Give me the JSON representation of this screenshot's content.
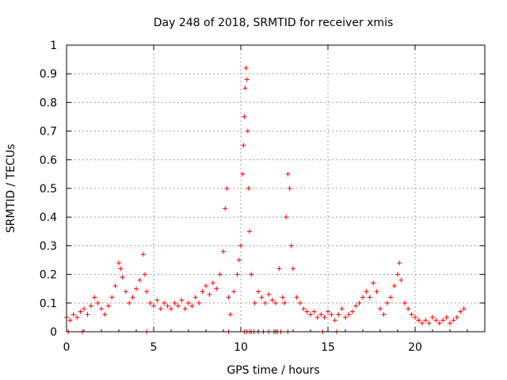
{
  "chart_data": {
    "type": "scatter",
    "title": "Day 248 of 2018, SRMTID for receiver xmis",
    "xlabel": "GPS time / hours",
    "ylabel": "SRMTID / TECUs",
    "xlim": [
      0,
      24
    ],
    "ylim": [
      0,
      1
    ],
    "xticks": [
      0,
      5,
      10,
      15,
      20
    ],
    "xtick_labels": [
      "0",
      "5",
      "10",
      "15",
      "20"
    ],
    "yticks": [
      0,
      0.1,
      0.2,
      0.3,
      0.4,
      0.5,
      0.6,
      0.7,
      0.8,
      0.9,
      1
    ],
    "ytick_labels": [
      "0",
      "0.1",
      "0.2",
      "0.3",
      "0.4",
      "0.5",
      "0.6",
      "0.7",
      "0.8",
      "0.9",
      "1"
    ],
    "grid": true,
    "marker": "+",
    "color": "#ff0000",
    "series": [
      {
        "name": "SRMTID",
        "points": [
          [
            0.0,
            0.05
          ],
          [
            0.2,
            0.04
          ],
          [
            0.4,
            0.06
          ],
          [
            0.6,
            0.05
          ],
          [
            0.8,
            0.07
          ],
          [
            1.0,
            0.08
          ],
          [
            1.2,
            0.06
          ],
          [
            1.4,
            0.09
          ],
          [
            1.6,
            0.12
          ],
          [
            1.8,
            0.1
          ],
          [
            2.0,
            0.08
          ],
          [
            2.2,
            0.06
          ],
          [
            2.4,
            0.09
          ],
          [
            2.6,
            0.12
          ],
          [
            2.8,
            0.16
          ],
          [
            3.0,
            0.24
          ],
          [
            3.1,
            0.22
          ],
          [
            3.2,
            0.19
          ],
          [
            3.4,
            0.14
          ],
          [
            3.6,
            0.1
          ],
          [
            3.8,
            0.12
          ],
          [
            4.0,
            0.15
          ],
          [
            4.2,
            0.18
          ],
          [
            4.4,
            0.27
          ],
          [
            4.5,
            0.2
          ],
          [
            4.6,
            0.14
          ],
          [
            4.8,
            0.1
          ],
          [
            5.0,
            0.09
          ],
          [
            5.2,
            0.11
          ],
          [
            5.4,
            0.08
          ],
          [
            5.6,
            0.1
          ],
          [
            5.8,
            0.09
          ],
          [
            6.0,
            0.08
          ],
          [
            6.2,
            0.1
          ],
          [
            6.4,
            0.09
          ],
          [
            6.6,
            0.11
          ],
          [
            6.8,
            0.08
          ],
          [
            7.0,
            0.1
          ],
          [
            7.2,
            0.09
          ],
          [
            7.4,
            0.12
          ],
          [
            7.6,
            0.1
          ],
          [
            7.8,
            0.14
          ],
          [
            8.0,
            0.16
          ],
          [
            8.2,
            0.13
          ],
          [
            8.4,
            0.17
          ],
          [
            8.6,
            0.15
          ],
          [
            8.8,
            0.2
          ],
          [
            9.0,
            0.28
          ],
          [
            9.1,
            0.43
          ],
          [
            9.2,
            0.5
          ],
          [
            9.3,
            0.12
          ],
          [
            9.4,
            0.06
          ],
          [
            9.6,
            0.14
          ],
          [
            9.8,
            0.2
          ],
          [
            9.9,
            0.25
          ],
          [
            10.0,
            0.3
          ],
          [
            10.1,
            0.55
          ],
          [
            10.15,
            0.65
          ],
          [
            10.2,
            0.75
          ],
          [
            10.25,
            0.85
          ],
          [
            10.3,
            0.92
          ],
          [
            10.35,
            0.88
          ],
          [
            10.4,
            0.7
          ],
          [
            10.45,
            0.5
          ],
          [
            10.5,
            0.35
          ],
          [
            10.6,
            0.2
          ],
          [
            10.8,
            0.1
          ],
          [
            11.0,
            0.14
          ],
          [
            11.2,
            0.12
          ],
          [
            11.4,
            0.1
          ],
          [
            11.6,
            0.13
          ],
          [
            11.8,
            0.11
          ],
          [
            12.0,
            0.1
          ],
          [
            12.2,
            0.22
          ],
          [
            12.4,
            0.12
          ],
          [
            12.5,
            0.1
          ],
          [
            12.6,
            0.4
          ],
          [
            12.7,
            0.55
          ],
          [
            12.8,
            0.5
          ],
          [
            12.9,
            0.3
          ],
          [
            13.0,
            0.22
          ],
          [
            13.2,
            0.12
          ],
          [
            13.4,
            0.1
          ],
          [
            13.6,
            0.08
          ],
          [
            13.8,
            0.07
          ],
          [
            14.0,
            0.06
          ],
          [
            14.2,
            0.07
          ],
          [
            14.4,
            0.05
          ],
          [
            14.6,
            0.06
          ],
          [
            14.8,
            0.05
          ],
          [
            15.0,
            0.07
          ],
          [
            15.2,
            0.06
          ],
          [
            15.4,
            0.04
          ],
          [
            15.6,
            0.06
          ],
          [
            15.8,
            0.08
          ],
          [
            16.0,
            0.05
          ],
          [
            16.2,
            0.06
          ],
          [
            16.4,
            0.07
          ],
          [
            16.6,
            0.09
          ],
          [
            16.8,
            0.1
          ],
          [
            17.0,
            0.12
          ],
          [
            17.2,
            0.14
          ],
          [
            17.4,
            0.12
          ],
          [
            17.6,
            0.17
          ],
          [
            17.8,
            0.14
          ],
          [
            18.0,
            0.08
          ],
          [
            18.2,
            0.06
          ],
          [
            18.4,
            0.1
          ],
          [
            18.6,
            0.12
          ],
          [
            18.8,
            0.16
          ],
          [
            19.0,
            0.2
          ],
          [
            19.1,
            0.24
          ],
          [
            19.2,
            0.18
          ],
          [
            19.4,
            0.1
          ],
          [
            19.6,
            0.08
          ],
          [
            19.8,
            0.06
          ],
          [
            20.0,
            0.05
          ],
          [
            20.2,
            0.04
          ],
          [
            20.4,
            0.03
          ],
          [
            20.6,
            0.04
          ],
          [
            20.8,
            0.03
          ],
          [
            21.0,
            0.05
          ],
          [
            21.2,
            0.04
          ],
          [
            21.4,
            0.03
          ],
          [
            21.6,
            0.04
          ],
          [
            21.8,
            0.05
          ],
          [
            22.0,
            0.03
          ],
          [
            22.2,
            0.04
          ],
          [
            22.4,
            0.05
          ],
          [
            22.6,
            0.07
          ],
          [
            22.8,
            0.08
          ],
          [
            0.1,
            0.0
          ],
          [
            0.9,
            0.0
          ],
          [
            4.6,
            0.0
          ],
          [
            9.3,
            0.0
          ],
          [
            10.2,
            0.0
          ],
          [
            10.35,
            0.0
          ],
          [
            10.5,
            0.0
          ],
          [
            10.6,
            0.0
          ],
          [
            10.75,
            0.0
          ],
          [
            11.0,
            0.0
          ],
          [
            11.3,
            0.0
          ],
          [
            11.6,
            0.0
          ],
          [
            11.9,
            0.0
          ],
          [
            12.0,
            0.0
          ],
          [
            12.1,
            0.0
          ],
          [
            12.3,
            0.0
          ],
          [
            12.7,
            0.0
          ],
          [
            14.7,
            0.0
          ],
          [
            15.5,
            0.0
          ]
        ]
      }
    ]
  }
}
